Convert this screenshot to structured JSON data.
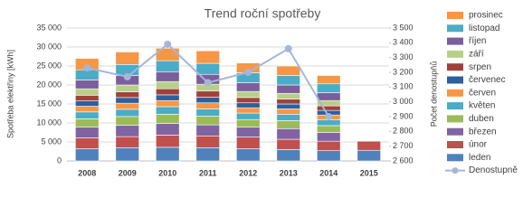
{
  "chart_data": {
    "type": "bar",
    "stacked": true,
    "title": "Trend roční spotřeby",
    "y_label": "Spotřeba elektřiny [kWh]",
    "y2_label": "Počet denostupňů",
    "categories": [
      "2008",
      "2009",
      "2010",
      "2011",
      "2012",
      "2013",
      "2014",
      "2015"
    ],
    "ylim": [
      0,
      35000
    ],
    "yticks": [
      0,
      {
        "value": 5000,
        "label": "5 000"
      },
      {
        "value": 10000,
        "label": "10 000"
      },
      {
        "value": 15000,
        "label": "15 000"
      },
      {
        "value": 20000,
        "label": "20 000"
      },
      {
        "value": 25000,
        "label": "25 000"
      },
      {
        "value": 30000,
        "label": "30 000"
      },
      {
        "value": 35000,
        "label": "35 000"
      }
    ],
    "y2lim": [
      2600,
      3500
    ],
    "y2ticks": [
      {
        "value": 2600,
        "label": "2 600"
      },
      {
        "value": 2700,
        "label": "2 700"
      },
      {
        "value": 2800,
        "label": "2 800"
      },
      {
        "value": 2900,
        "label": "2 900"
      },
      {
        "value": 3000,
        "label": "3 000"
      },
      {
        "value": 3100,
        "label": "3 100"
      },
      {
        "value": 3200,
        "label": "3 200"
      },
      {
        "value": 3300,
        "label": "3 300"
      },
      {
        "value": 3400,
        "label": "3 400"
      },
      {
        "value": 3500,
        "label": "3 500"
      }
    ],
    "grid": true,
    "series": [
      {
        "name": "leden",
        "color": "#4f81bd",
        "values": [
          3200,
          3500,
          3600,
          3500,
          3200,
          3000,
          2700,
          2800
        ]
      },
      {
        "name": "únor",
        "color": "#c0504d",
        "values": [
          2900,
          2900,
          3200,
          3100,
          3100,
          2700,
          2500,
          2400
        ]
      },
      {
        "name": "březen",
        "color": "#8064a2",
        "values": [
          2800,
          3000,
          3100,
          2900,
          2600,
          2800,
          2300,
          null
        ]
      },
      {
        "name": "duben",
        "color": "#9bbb59",
        "values": [
          2200,
          2300,
          2400,
          2300,
          2000,
          2100,
          1800,
          null
        ]
      },
      {
        "name": "květen",
        "color": "#4bacc6",
        "values": [
          1800,
          1900,
          2000,
          1900,
          1700,
          1700,
          1500,
          null
        ]
      },
      {
        "name": "červen",
        "color": "#f79646",
        "values": [
          1500,
          1600,
          1600,
          1600,
          1400,
          1400,
          1300,
          null
        ]
      },
      {
        "name": "červenec",
        "color": "#2c5f9e",
        "values": [
          1400,
          1500,
          1500,
          1500,
          1300,
          1300,
          1200,
          null
        ]
      },
      {
        "name": "srpen",
        "color": "#a0413c",
        "values": [
          1500,
          1500,
          1600,
          1600,
          1400,
          1300,
          1200,
          null
        ]
      },
      {
        "name": "září",
        "color": "#b8cf8a",
        "values": [
          1700,
          1800,
          1900,
          1800,
          1600,
          1500,
          1400,
          null
        ]
      },
      {
        "name": "říjen",
        "color": "#7a5f9c",
        "values": [
          2300,
          2500,
          2500,
          2600,
          2300,
          2200,
          2100,
          null
        ]
      },
      {
        "name": "listopad",
        "color": "#4bacc6",
        "values": [
          2700,
          2900,
          3000,
          2900,
          2600,
          2500,
          2300,
          null
        ]
      },
      {
        "name": "prosinec",
        "color": "#f79646",
        "values": [
          3000,
          3300,
          3300,
          3300,
          2600,
          2500,
          2200,
          null
        ]
      },
      {
        "name": "Denostupně",
        "type": "line",
        "axis": "y2",
        "color": "#a5b6d9",
        "values": [
          3230,
          3170,
          3390,
          3130,
          3200,
          3360,
          2900,
          null
        ]
      }
    ]
  }
}
